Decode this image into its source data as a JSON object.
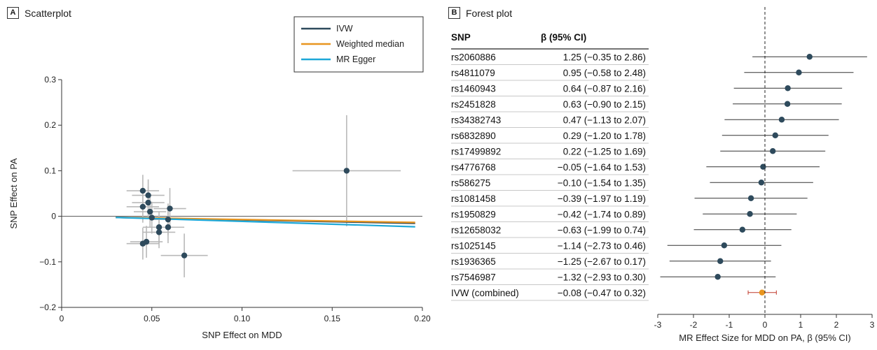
{
  "chart_data": [
    {
      "panel": "A",
      "title": "Scatterplot",
      "type": "scatter",
      "xlabel": "SNP Effect on MDD",
      "ylabel": "SNP Effect on PA",
      "xlim": [
        0,
        0.2
      ],
      "ylim": [
        -0.2,
        0.3
      ],
      "x_ticks": [
        {
          "value": 0,
          "label": "0"
        },
        {
          "value": 0.05,
          "label": "0.05"
        },
        {
          "value": 0.1,
          "label": "0.10"
        },
        {
          "value": 0.15,
          "label": "0.15"
        },
        {
          "value": 0.2,
          "label": "0.20"
        }
      ],
      "y_ticks": [
        {
          "value": -0.2,
          "label": "−0.2"
        },
        {
          "value": -0.1,
          "label": "−0.1"
        },
        {
          "value": 0,
          "label": "0"
        },
        {
          "value": 0.1,
          "label": "0.1"
        },
        {
          "value": 0.2,
          "label": "0.2"
        },
        {
          "value": 0.3,
          "label": "0.3"
        }
      ],
      "legend_position": "top-right",
      "legend": [
        {
          "name": "IVW",
          "color": "#2e4a5c"
        },
        {
          "name": "Weighted median",
          "color": "#e8951f"
        },
        {
          "name": "MR Egger",
          "color": "#1ea8d8"
        }
      ],
      "lines": [
        {
          "name": "IVW",
          "color": "#2e4a5c",
          "x": [
            0.03,
            0.196
          ],
          "y": [
            -0.0025,
            -0.0155
          ]
        },
        {
          "name": "Weighted median",
          "color": "#e8951f",
          "x": [
            0.03,
            0.196
          ],
          "y": [
            -0.0025,
            -0.0135
          ]
        },
        {
          "name": "MR Egger",
          "color": "#1ea8d8",
          "x": [
            0.03,
            0.196
          ],
          "y": [
            -0.0025,
            -0.023
          ]
        }
      ],
      "points": [
        {
          "x": 0.045,
          "y": 0.056,
          "xerr": 0.009,
          "yerr": 0.035
        },
        {
          "x": 0.048,
          "y": 0.046,
          "xerr": 0.009,
          "yerr": 0.035
        },
        {
          "x": 0.048,
          "y": 0.03,
          "xerr": 0.009,
          "yerr": 0.035
        },
        {
          "x": 0.045,
          "y": 0.021,
          "xerr": 0.009,
          "yerr": 0.035
        },
        {
          "x": 0.049,
          "y": 0.01,
          "xerr": 0.009,
          "yerr": 0.035
        },
        {
          "x": 0.05,
          "y": -0.003,
          "xerr": 0.009,
          "yerr": 0.035
        },
        {
          "x": 0.06,
          "y": 0.017,
          "xerr": 0.009,
          "yerr": 0.045
        },
        {
          "x": 0.059,
          "y": -0.007,
          "xerr": 0.009,
          "yerr": 0.035
        },
        {
          "x": 0.059,
          "y": -0.024,
          "xerr": 0.009,
          "yerr": 0.035
        },
        {
          "x": 0.054,
          "y": -0.024,
          "xerr": 0.009,
          "yerr": 0.035
        },
        {
          "x": 0.054,
          "y": -0.035,
          "xerr": 0.009,
          "yerr": 0.035
        },
        {
          "x": 0.047,
          "y": -0.056,
          "xerr": 0.009,
          "yerr": 0.035
        },
        {
          "x": 0.045,
          "y": -0.06,
          "xerr": 0.009,
          "yerr": 0.035
        },
        {
          "x": 0.068,
          "y": -0.086,
          "xerr": 0.013,
          "yerr": 0.048
        },
        {
          "x": 0.158,
          "y": 0.1,
          "xerr": 0.03,
          "yerr": 0.122
        }
      ]
    },
    {
      "panel": "B",
      "title": "Forest plot",
      "type": "forest",
      "xlabel": "MR Effect Size for MDD on PA, β (95% CI)",
      "xlim": [
        -3,
        3
      ],
      "x_ticks": [
        {
          "value": -3,
          "label": "-3"
        },
        {
          "value": -2,
          "label": "-2"
        },
        {
          "value": -1,
          "label": "-1"
        },
        {
          "value": 0,
          "label": "0"
        },
        {
          "value": 1,
          "label": "1"
        },
        {
          "value": 2,
          "label": "2"
        },
        {
          "value": 3,
          "label": "3"
        }
      ],
      "col_headers": {
        "snp": "SNP",
        "ci": "β (95% CI)"
      },
      "rows": [
        {
          "snp": "rs2060886",
          "ci_text": "1.25 (−0.35 to 2.86)",
          "beta": 1.25,
          "lo": -0.35,
          "hi": 2.86
        },
        {
          "snp": "rs4811079",
          "ci_text": "0.95 (−0.58 to 2.48)",
          "beta": 0.95,
          "lo": -0.58,
          "hi": 2.48
        },
        {
          "snp": "rs1460943",
          "ci_text": "0.64 (−0.87 to 2.16)",
          "beta": 0.64,
          "lo": -0.87,
          "hi": 2.16
        },
        {
          "snp": "rs2451828",
          "ci_text": "0.63 (−0.90 to 2.15)",
          "beta": 0.63,
          "lo": -0.9,
          "hi": 2.15
        },
        {
          "snp": "rs34382743",
          "ci_text": "0.47 (−1.13 to 2.07)",
          "beta": 0.47,
          "lo": -1.13,
          "hi": 2.07
        },
        {
          "snp": "rs6832890",
          "ci_text": "0.29 (−1.20 to 1.78)",
          "beta": 0.29,
          "lo": -1.2,
          "hi": 1.78
        },
        {
          "snp": "rs17499892",
          "ci_text": "0.22 (−1.25 to 1.69)",
          "beta": 0.22,
          "lo": -1.25,
          "hi": 1.69
        },
        {
          "snp": "rs4776768",
          "ci_text": "−0.05 (−1.64 to 1.53)",
          "beta": -0.05,
          "lo": -1.64,
          "hi": 1.53
        },
        {
          "snp": "rs586275",
          "ci_text": "−0.10 (−1.54 to 1.35)",
          "beta": -0.1,
          "lo": -1.54,
          "hi": 1.35
        },
        {
          "snp": "rs1081458",
          "ci_text": "−0.39 (−1.97 to 1.19)",
          "beta": -0.39,
          "lo": -1.97,
          "hi": 1.19
        },
        {
          "snp": "rs1950829",
          "ci_text": "−0.42 (−1.74 to 0.89)",
          "beta": -0.42,
          "lo": -1.74,
          "hi": 0.89
        },
        {
          "snp": "rs12658032",
          "ci_text": "−0.63 (−1.99 to 0.74)",
          "beta": -0.63,
          "lo": -1.99,
          "hi": 0.74
        },
        {
          "snp": "rs1025145",
          "ci_text": "−1.14 (−2.73 to 0.46)",
          "beta": -1.14,
          "lo": -2.73,
          "hi": 0.46
        },
        {
          "snp": "rs1936365",
          "ci_text": "−1.25 (−2.67 to 0.17)",
          "beta": -1.25,
          "lo": -2.67,
          "hi": 0.17
        },
        {
          "snp": "rs7546987",
          "ci_text": "−1.32 (−2.93 to 0.30)",
          "beta": -1.32,
          "lo": -2.93,
          "hi": 0.3
        },
        {
          "snp": "IVW (combined)",
          "ci_text": "−0.08 (−0.47 to 0.32)",
          "beta": -0.08,
          "lo": -0.47,
          "hi": 0.32,
          "combined": true
        }
      ],
      "colors": {
        "point": "#2e4a5c",
        "combined": "#e8951f",
        "combined_ci": "#c0392b"
      }
    }
  ]
}
